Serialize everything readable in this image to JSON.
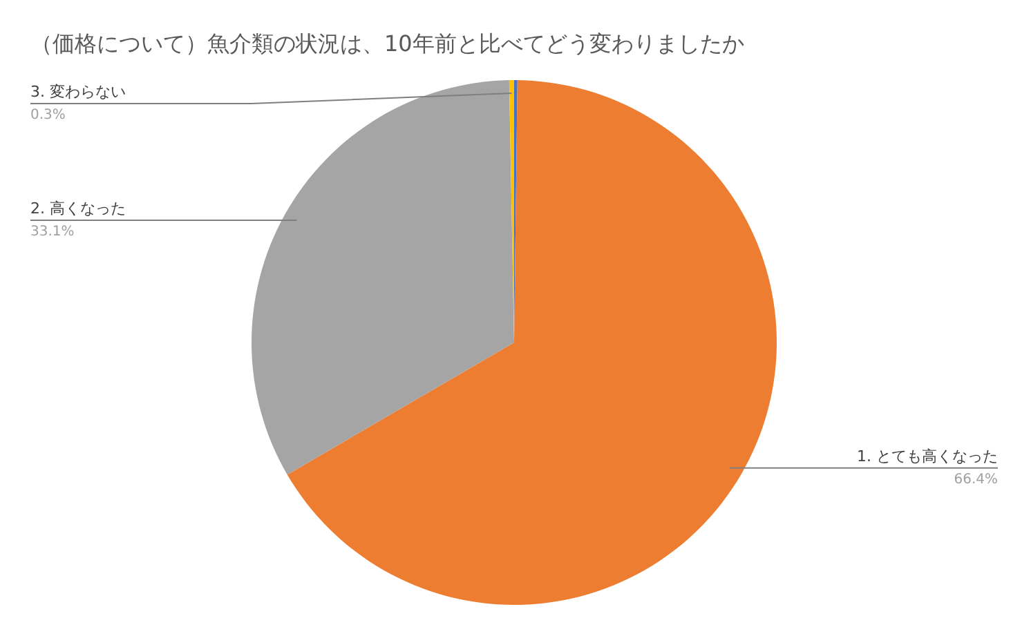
{
  "chart_data": {
    "type": "pie",
    "title": "（価格について）魚介類の状況は、10年前と比べてどう変わりましたか",
    "categories": [
      null,
      "1. とても高くなった",
      "2. 高くなった",
      "3. 変わらない"
    ],
    "values": [
      0.2,
      66.4,
      33.1,
      0.3
    ],
    "colors": [
      "#4472c4",
      "#ed7d31",
      "#a5a5a5",
      "#ffc000"
    ],
    "value_labels": [
      null,
      "66.4%",
      "33.1%",
      "0.3%"
    ],
    "legend": false
  }
}
